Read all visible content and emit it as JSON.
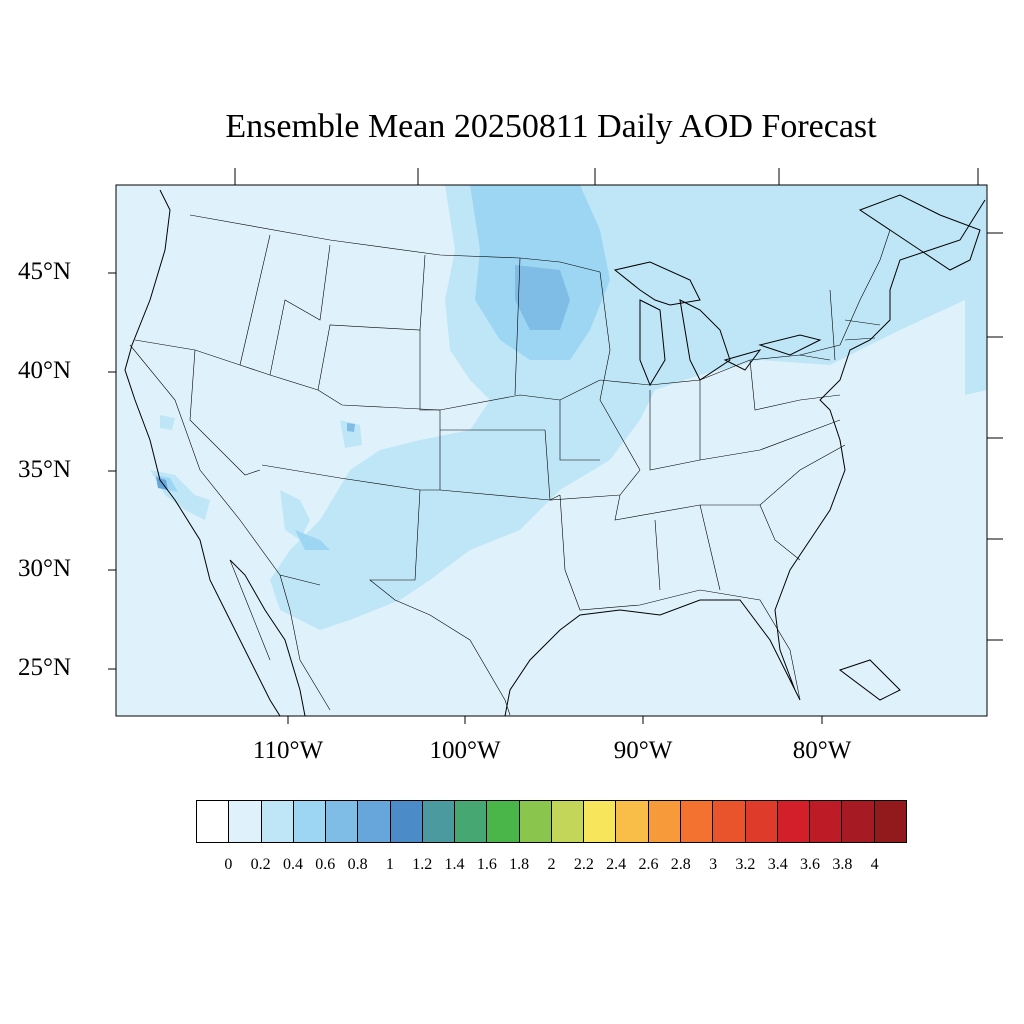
{
  "title": "Ensemble Mean 20250811 Daily AOD Forecast",
  "lat_labels": [
    "45°N",
    "40°N",
    "35°N",
    "30°N",
    "25°N"
  ],
  "lon_labels": [
    "110°W",
    "100°W",
    "90°W",
    "80°W"
  ],
  "colorbar": {
    "colors": [
      "#ffffff",
      "#dff2fb",
      "#bfe6f7",
      "#9dd6f3",
      "#80bde6",
      "#67a6da",
      "#4a8bc8",
      "#4a9aa0",
      "#47a772",
      "#4ab548",
      "#8ac54e",
      "#c3d65a",
      "#f7e65c",
      "#f8be47",
      "#f79a3a",
      "#f4722f",
      "#ea542c",
      "#df3b2a",
      "#d21f2a",
      "#bd1c27",
      "#a61a24",
      "#921a1d"
    ],
    "labels": [
      "0",
      "0.2",
      "0.4",
      "0.6",
      "0.8",
      "1",
      "1.2",
      "1.4",
      "1.6",
      "1.8",
      "2",
      "2.2",
      "2.4",
      "2.6",
      "2.8",
      "3",
      "3.2",
      "3.4",
      "3.6",
      "3.8",
      "4"
    ]
  },
  "map": {
    "background_color": "#dff2fb",
    "shade_color": "#bfe6f7",
    "dark_shade_color": "#9dd6f3",
    "darkest_shade_color": "#80bde6"
  }
}
